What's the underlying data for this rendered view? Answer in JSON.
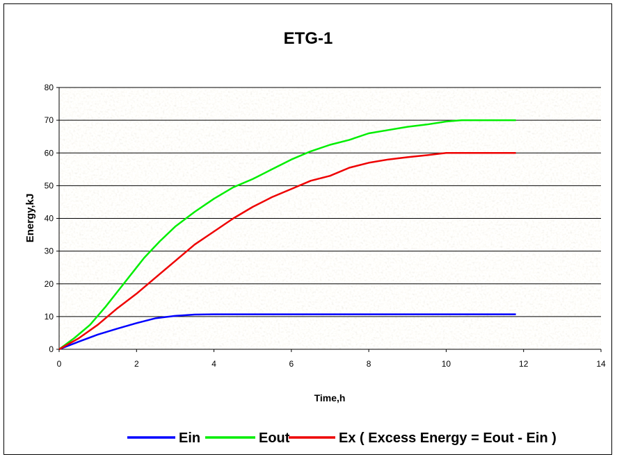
{
  "chart_data": {
    "type": "line",
    "title": "ETG-1",
    "xlabel": "Time,h",
    "ylabel": "Energy,kJ",
    "xlim": [
      0,
      14
    ],
    "ylim": [
      0,
      80
    ],
    "xticks": [
      "0",
      "2",
      "4",
      "6",
      "8",
      "10",
      "12",
      "14"
    ],
    "yticks": [
      "0",
      "10",
      "20",
      "30",
      "40",
      "50",
      "60",
      "70",
      "80"
    ],
    "grid": "horizontal",
    "legend_position": "bottom",
    "plot_background": "grey granite texture",
    "series": [
      {
        "name": "Ein",
        "color": "#0000ff",
        "x": [
          0,
          0.5,
          1.0,
          1.5,
          2.0,
          2.5,
          3.0,
          3.5,
          4.0,
          5.0,
          6.0,
          7.0,
          8.0,
          9.0,
          10.0,
          11.0,
          11.8
        ],
        "y": [
          0,
          2.3,
          4.5,
          6.3,
          8.0,
          9.5,
          10.2,
          10.6,
          10.7,
          10.7,
          10.7,
          10.7,
          10.7,
          10.7,
          10.7,
          10.7,
          10.7
        ]
      },
      {
        "name": "Eout",
        "color": "#00ee00",
        "x": [
          0,
          0.4,
          0.8,
          1.2,
          1.6,
          2.0,
          2.2,
          2.6,
          3.0,
          3.5,
          4.0,
          4.5,
          5.0,
          5.5,
          6.0,
          6.5,
          7.0,
          7.5,
          8.0,
          8.5,
          9.0,
          9.5,
          10.0,
          10.4,
          11.0,
          11.8
        ],
        "y": [
          0,
          3.5,
          7.5,
          13,
          19,
          25,
          28,
          33,
          37.5,
          42,
          46,
          49.5,
          52,
          55,
          58,
          60.5,
          62.5,
          64,
          66,
          67,
          68,
          68.7,
          69.6,
          70,
          70,
          70
        ]
      },
      {
        "name": "Ex ( Excess Energy = Eout - Ein )",
        "color": "#ee0000",
        "x": [
          0,
          0.5,
          1.0,
          1.5,
          2.0,
          2.5,
          3.0,
          3.5,
          4.0,
          4.5,
          5.0,
          5.5,
          6.0,
          6.5,
          7.0,
          7.5,
          8.0,
          8.5,
          9.0,
          9.5,
          10.0,
          11.0,
          11.8
        ],
        "y": [
          0,
          3.3,
          7.5,
          12.5,
          17,
          22,
          27,
          32,
          36,
          40,
          43.5,
          46.5,
          49,
          51.5,
          53,
          55.5,
          57,
          58,
          58.7,
          59.3,
          60,
          60,
          60
        ]
      }
    ]
  }
}
